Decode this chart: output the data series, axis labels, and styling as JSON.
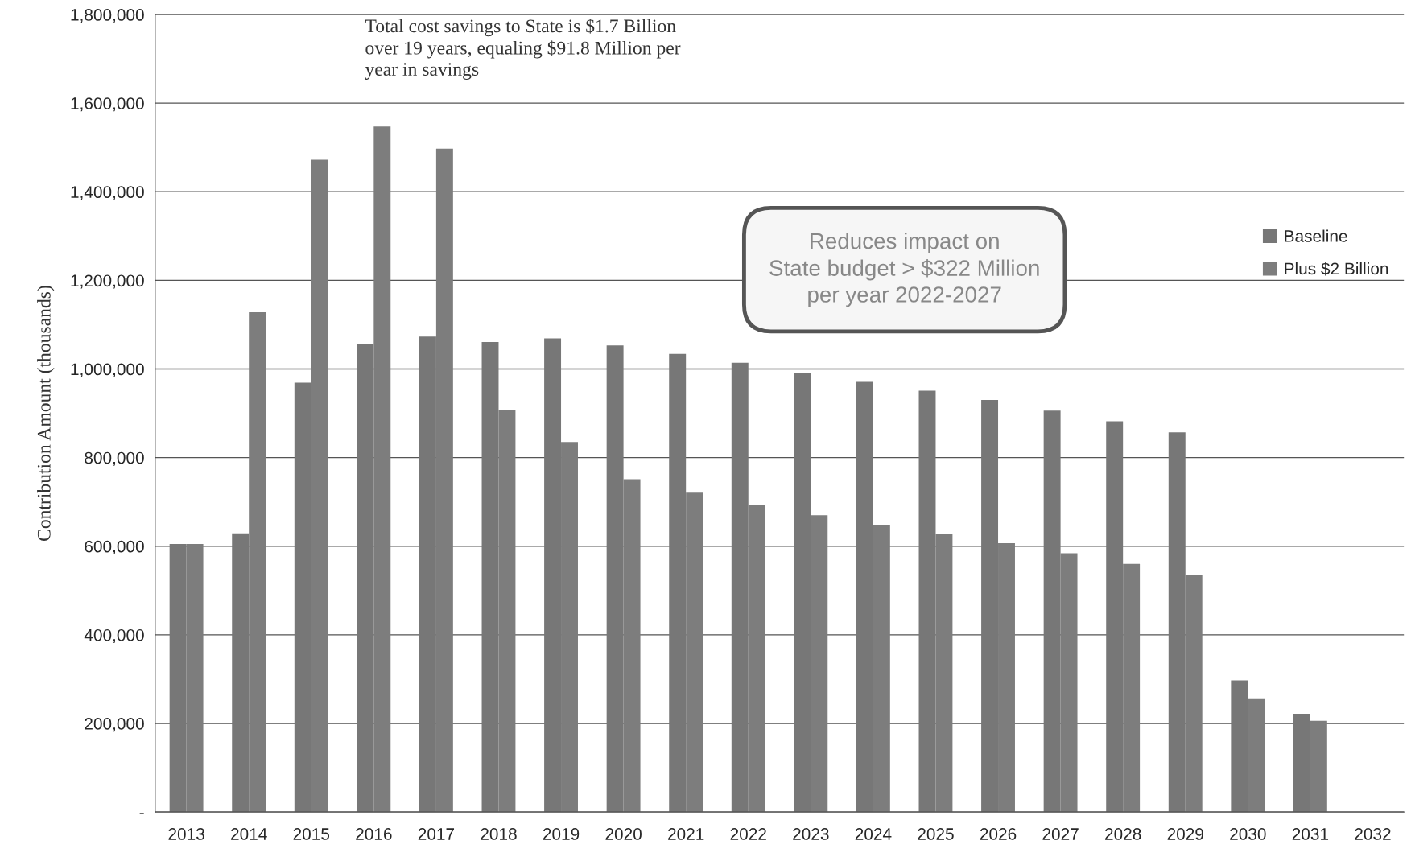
{
  "chart_data": {
    "type": "bar",
    "ylabel": "Contribution Amount (thousands)",
    "categories": [
      "2013",
      "2014",
      "2015",
      "2016",
      "2017",
      "2018",
      "2019",
      "2020",
      "2021",
      "2022",
      "2023",
      "2024",
      "2025",
      "2026",
      "2027",
      "2028",
      "2029",
      "2030",
      "2031",
      "2032"
    ],
    "series": [
      {
        "name": "Baseline",
        "color": "#777777",
        "values": [
          605000,
          629000,
          969000,
          1057000,
          1073000,
          1061000,
          1069000,
          1053000,
          1034000,
          1014000,
          992000,
          971000,
          951000,
          930000,
          906000,
          882000,
          857000,
          297000,
          222000,
          null
        ]
      },
      {
        "name": "Plus $2 Billion",
        "color": "#7d7d7d",
        "values": [
          605000,
          1128000,
          1472000,
          1547000,
          1497000,
          908000,
          835000,
          751000,
          721000,
          692000,
          670000,
          647000,
          627000,
          607000,
          584000,
          560000,
          536000,
          255000,
          206000,
          null
        ]
      }
    ],
    "ylim": [
      0,
      1800000
    ],
    "yticks": [
      {
        "value": 0,
        "label": "-"
      },
      {
        "value": 200000,
        "label": "200,000"
      },
      {
        "value": 400000,
        "label": "400,000"
      },
      {
        "value": 600000,
        "label": "600,000"
      },
      {
        "value": 800000,
        "label": "800,000"
      },
      {
        "value": 1000000,
        "label": "1,000,000"
      },
      {
        "value": 1200000,
        "label": "1,200,000"
      },
      {
        "value": 1400000,
        "label": "1,400,000"
      },
      {
        "value": 1600000,
        "label": "1,600,000"
      },
      {
        "value": 1800000,
        "label": "1,800,000"
      }
    ],
    "grid": "y",
    "legend": "right",
    "annotations": [
      "Total cost savings to State is $1.7 Billion\nover 19 years, equaling $91.8 Million per\nyear in savings",
      "Reduces impact on\nState budget > $322 Million\nper year 2022-2027"
    ]
  }
}
